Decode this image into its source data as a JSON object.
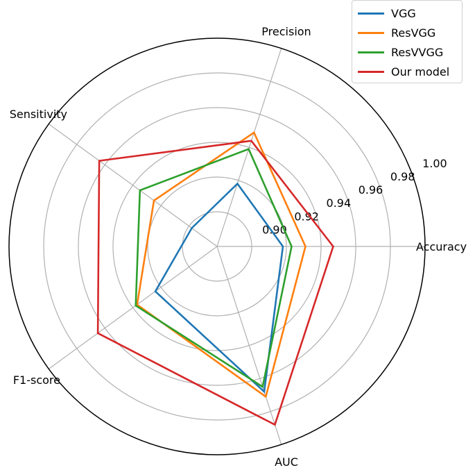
{
  "chart_data": {
    "type": "radar",
    "categories": [
      "Accuracy",
      "Precision",
      "Sensitivity",
      "F1-score",
      "AUC"
    ],
    "rlim": [
      0.88,
      1.0
    ],
    "r_ticks": [
      "0.90",
      "0.92",
      "0.94",
      "0.96",
      "0.98",
      "1.00"
    ],
    "r_tick_values": [
      0.9,
      0.92,
      0.94,
      0.96,
      0.98,
      1.0
    ],
    "grid": true,
    "legend_position": "top-right",
    "series": [
      {
        "name": "VGG",
        "color": "#1f77b4",
        "values": [
          0.918,
          0.918,
          0.898,
          0.924,
          0.968
        ]
      },
      {
        "name": "ResVGG",
        "color": "#ff7f0e",
        "values": [
          0.931,
          0.949,
          0.925,
          0.937,
          0.971
        ]
      },
      {
        "name": "ResVVGG",
        "color": "#2ca02c",
        "values": [
          0.923,
          0.939,
          0.935,
          0.938,
          0.965
        ]
      },
      {
        "name": "Our model",
        "color": "#d62728",
        "values": [
          0.947,
          0.944,
          0.964,
          0.965,
          0.988
        ]
      }
    ]
  }
}
